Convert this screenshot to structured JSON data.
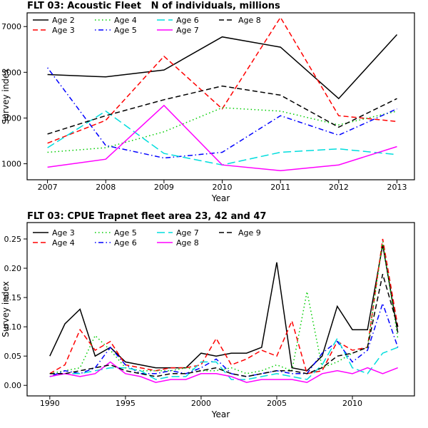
{
  "colors": {
    "black": "#000000",
    "red": "#FF0000",
    "green": "#00CD00",
    "blue": "#0000FF",
    "cyan": "#00DDDD",
    "magenta": "#FF00FF"
  },
  "chart_data": [
    {
      "type": "line",
      "title": "FLT 03: Acoustic Fleet   N of individuals, millions",
      "xlabel": "Year",
      "ylabel": "Survey index",
      "grid": false,
      "legend_position": "top-left",
      "xlim": [
        2006.65,
        2013.3
      ],
      "ylim": [
        300,
        7600
      ],
      "xticks": [
        2007,
        2008,
        2009,
        2010,
        2011,
        2012,
        2013
      ],
      "xtick_labels": [
        "2007",
        "2008",
        "2009",
        "2010",
        "2011",
        "2012",
        "2013"
      ],
      "yticks": [
        1000,
        3000,
        5000,
        7000
      ],
      "ytick_labels": [
        "1000",
        "3000",
        "5000",
        "7000"
      ],
      "x": [
        2007,
        2008,
        2009,
        2010,
        2011,
        2012,
        2013
      ],
      "series": [
        {
          "name": "Age 2",
          "color": "#000000",
          "dash": "solid",
          "values": [
            4900,
            4800,
            5100,
            6550,
            6100,
            3850,
            6650
          ]
        },
        {
          "name": "Age 3",
          "color": "#FF0000",
          "dash": "dashed",
          "values": [
            1900,
            2900,
            5700,
            3400,
            7400,
            3100,
            2850
          ]
        },
        {
          "name": "Age 4",
          "color": "#00CD00",
          "dash": "dotted",
          "values": [
            1500,
            1700,
            2400,
            3450,
            3300,
            2700,
            3300
          ]
        },
        {
          "name": "Age 5",
          "color": "#0000FF",
          "dash": "dotdash",
          "values": [
            5200,
            1800,
            1250,
            1500,
            3100,
            2250,
            3400
          ]
        },
        {
          "name": "Age 6",
          "color": "#00DDDD",
          "dash": "longdash",
          "values": [
            1700,
            3300,
            1450,
            950,
            1500,
            1650,
            1400
          ]
        },
        {
          "name": "Age 7",
          "color": "#FF00FF",
          "dash": "solid",
          "values": [
            850,
            1200,
            3550,
            950,
            700,
            950,
            1750
          ]
        },
        {
          "name": "Age 8",
          "color": "#000000",
          "dash": "dashed",
          "values": [
            2300,
            3100,
            3800,
            4400,
            4000,
            2600,
            3850
          ]
        }
      ]
    },
    {
      "type": "line",
      "title": "FLT 03: CPUE Trapnet fleet area 23, 42 and 47",
      "xlabel": "Year",
      "ylabel": "Survey index",
      "grid": false,
      "legend_position": "top-left",
      "xlim": [
        1988.5,
        2014.1
      ],
      "ylim": [
        -0.018,
        0.278
      ],
      "xticks": [
        1990,
        1995,
        2000,
        2005,
        2010
      ],
      "xtick_labels": [
        "1990",
        "1995",
        "2000",
        "2005",
        "2010"
      ],
      "yticks": [
        0,
        0.05,
        0.1,
        0.15,
        0.2,
        0.25
      ],
      "ytick_labels": [
        "0.00",
        "0.05",
        "0.10",
        "0.15",
        "0.20",
        "0.25"
      ],
      "x": [
        1990,
        1991,
        1992,
        1993,
        1994,
        1995,
        1996,
        1997,
        1998,
        1999,
        2000,
        2001,
        2002,
        2003,
        2004,
        2005,
        2006,
        2007,
        2008,
        2009,
        2010,
        2011,
        2012,
        2013
      ],
      "series": [
        {
          "name": "Age 3",
          "color": "#000000",
          "dash": "solid",
          "values": [
            0.05,
            0.105,
            0.13,
            0.05,
            0.065,
            0.04,
            0.035,
            0.03,
            0.03,
            0.03,
            0.055,
            0.05,
            0.055,
            0.055,
            0.065,
            0.21,
            0.03,
            0.025,
            0.05,
            0.135,
            0.095,
            0.095,
            0.24,
            0.09
          ]
        },
        {
          "name": "Age 4",
          "color": "#FF0000",
          "dash": "dashed",
          "values": [
            0.02,
            0.035,
            0.095,
            0.06,
            0.075,
            0.035,
            0.03,
            0.025,
            0.03,
            0.03,
            0.035,
            0.08,
            0.035,
            0.045,
            0.06,
            0.05,
            0.11,
            0.02,
            0.025,
            0.075,
            0.06,
            0.065,
            0.25,
            0.1
          ]
        },
        {
          "name": "Age 5",
          "color": "#00CD00",
          "dash": "dotted",
          "values": [
            0.02,
            0.025,
            0.03,
            0.085,
            0.06,
            0.03,
            0.025,
            0.025,
            0.025,
            0.03,
            0.025,
            0.025,
            0.03,
            0.02,
            0.025,
            0.035,
            0.025,
            0.16,
            0.03,
            0.04,
            0.055,
            0.065,
            0.245,
            0.08
          ]
        },
        {
          "name": "Age 6",
          "color": "#0000FF",
          "dash": "dotdash",
          "values": [
            0.015,
            0.025,
            0.02,
            0.03,
            0.065,
            0.035,
            0.02,
            0.02,
            0.025,
            0.02,
            0.03,
            0.045,
            0.02,
            0.015,
            0.02,
            0.025,
            0.02,
            0.02,
            0.055,
            0.075,
            0.04,
            0.06,
            0.14,
            0.065
          ]
        },
        {
          "name": "Age 7",
          "color": "#00DDDD",
          "dash": "longdash",
          "values": [
            0.015,
            0.02,
            0.02,
            0.025,
            0.03,
            0.03,
            0.025,
            0.01,
            0.015,
            0.015,
            0.04,
            0.04,
            0.01,
            0.01,
            0.015,
            0.02,
            0.015,
            0.01,
            0.035,
            0.08,
            0.03,
            0.02,
            0.055,
            0.065
          ]
        },
        {
          "name": "Age 8",
          "color": "#FF00FF",
          "dash": "solid",
          "values": [
            0.015,
            0.02,
            0.015,
            0.02,
            0.04,
            0.02,
            0.015,
            0.005,
            0.01,
            0.01,
            0.02,
            0.02,
            0.015,
            0.005,
            0.01,
            0.01,
            0.01,
            0.005,
            0.02,
            0.025,
            0.02,
            0.03,
            0.02,
            0.03
          ]
        },
        {
          "name": "Age 9",
          "color": "#000000",
          "dash": "dashed",
          "values": [
            0.02,
            0.02,
            0.025,
            0.03,
            0.035,
            0.025,
            0.02,
            0.015,
            0.02,
            0.02,
            0.025,
            0.03,
            0.02,
            0.015,
            0.02,
            0.025,
            0.025,
            0.02,
            0.03,
            0.05,
            0.055,
            0.065,
            0.19,
            0.1
          ]
        }
      ]
    }
  ]
}
